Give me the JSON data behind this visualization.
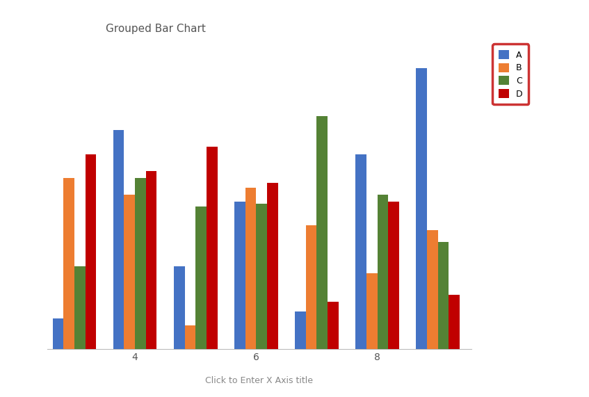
{
  "title": "Grouped Bar Chart",
  "xlabel": "Click to Enter X Axis title",
  "x_positions": [
    3,
    4,
    5,
    6,
    7,
    8,
    9
  ],
  "x_tick_positions": [
    4,
    6,
    8
  ],
  "x_tick_labels": [
    "4",
    "6",
    "8"
  ],
  "series": {
    "A": {
      "color": "#4472C4",
      "values": [
        1.3,
        9.2,
        3.5,
        6.2,
        1.6,
        8.2,
        11.8
      ]
    },
    "B": {
      "color": "#ED7D31",
      "values": [
        7.2,
        6.5,
        1.0,
        6.8,
        5.2,
        3.2,
        5.0
      ]
    },
    "C": {
      "color": "#548235",
      "values": [
        3.5,
        7.2,
        6.0,
        6.1,
        9.8,
        6.5,
        4.5
      ]
    },
    "D": {
      "color": "#C00000",
      "values": [
        8.2,
        7.5,
        8.5,
        7.0,
        2.0,
        6.2,
        2.3
      ]
    }
  },
  "ylim": [
    0,
    13
  ],
  "bar_width": 0.18,
  "background_color": "#ffffff",
  "plot_bg_color": "#ffffff",
  "grid_color": "#dddddd",
  "title_fontsize": 11,
  "legend_box_color": "#C00000",
  "figsize": [
    8.47,
    5.71
  ],
  "dpi": 100
}
